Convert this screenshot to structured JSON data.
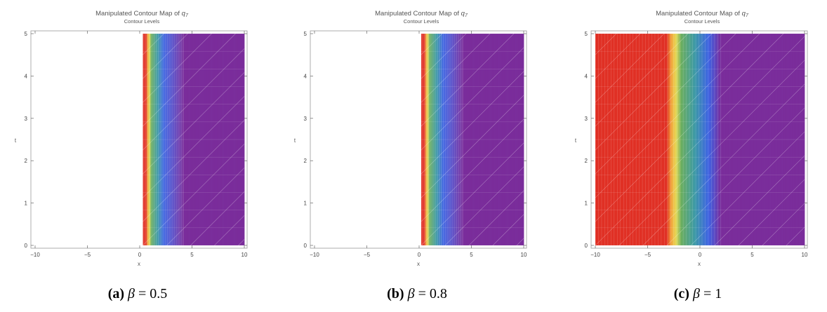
{
  "chart_data": [
    {
      "type": "heatmap",
      "panel_label": "(a)",
      "parameter_symbol": "β",
      "parameter_value": "0.5",
      "title_main": "Manipulated Contour Map of ",
      "title_var": "q",
      "title_sub_index": "7",
      "subtitle": "Contour Levels",
      "xlabel": "x",
      "ylabel": "t",
      "xlim": [
        -10,
        10
      ],
      "ylim": [
        0,
        5
      ],
      "xticks": [
        "−10",
        "−5",
        "0",
        "5",
        "10"
      ],
      "yticks": [
        "0",
        "1",
        "2",
        "3",
        "4",
        "5"
      ],
      "data_x_range": [
        0.3,
        10
      ],
      "boundary_x": 0.3,
      "red_end_x": 0.6,
      "green_center_x": 1.1,
      "blue_x": 2.3,
      "purple_start_x": 4.2
    },
    {
      "type": "heatmap",
      "panel_label": "(b)",
      "parameter_symbol": "β",
      "parameter_value": "0.8",
      "title_main": "Manipulated Contour Map of ",
      "title_var": "q",
      "title_sub_index": "7",
      "subtitle": "Contour Levels",
      "xlabel": "x",
      "ylabel": "t",
      "xlim": [
        -10,
        10
      ],
      "ylim": [
        0,
        5
      ],
      "xticks": [
        "−10",
        "−5",
        "0",
        "5",
        "10"
      ],
      "yticks": [
        "0",
        "1",
        "2",
        "3",
        "4",
        "5"
      ],
      "data_x_range": [
        0.2,
        10
      ],
      "boundary_x": 0.2,
      "red_end_x": 0.5,
      "green_center_x": 1.0,
      "blue_x": 2.3,
      "purple_start_x": 4.2
    },
    {
      "type": "heatmap",
      "panel_label": "(c)",
      "parameter_symbol": "β",
      "parameter_value": "1",
      "title_main": "Manipulated Contour Map of ",
      "title_var": "q",
      "title_sub_index": "7",
      "subtitle": "Contour Levels",
      "xlabel": "x",
      "ylabel": "t",
      "xlim": [
        -10,
        10
      ],
      "ylim": [
        0,
        5
      ],
      "xticks": [
        "−10",
        "−5",
        "0",
        "5",
        "10"
      ],
      "yticks": [
        "0",
        "1",
        "2",
        "3",
        "4",
        "5"
      ],
      "data_x_range": [
        -10,
        10
      ],
      "boundary_x": -10,
      "red_end_x": -3.2,
      "green_center_x": -1.8,
      "blue_x": 0.8,
      "purple_start_x": 2.0
    }
  ],
  "colors": {
    "red": "#e03025",
    "orange": "#f2a43a",
    "yellow": "#e6dc58",
    "green": "#6cae5e",
    "teal": "#3d9aa6",
    "blue": "#3e64e2",
    "indigo": "#5a4ac4",
    "purple": "#7a2d9b",
    "frame": "#999999"
  }
}
